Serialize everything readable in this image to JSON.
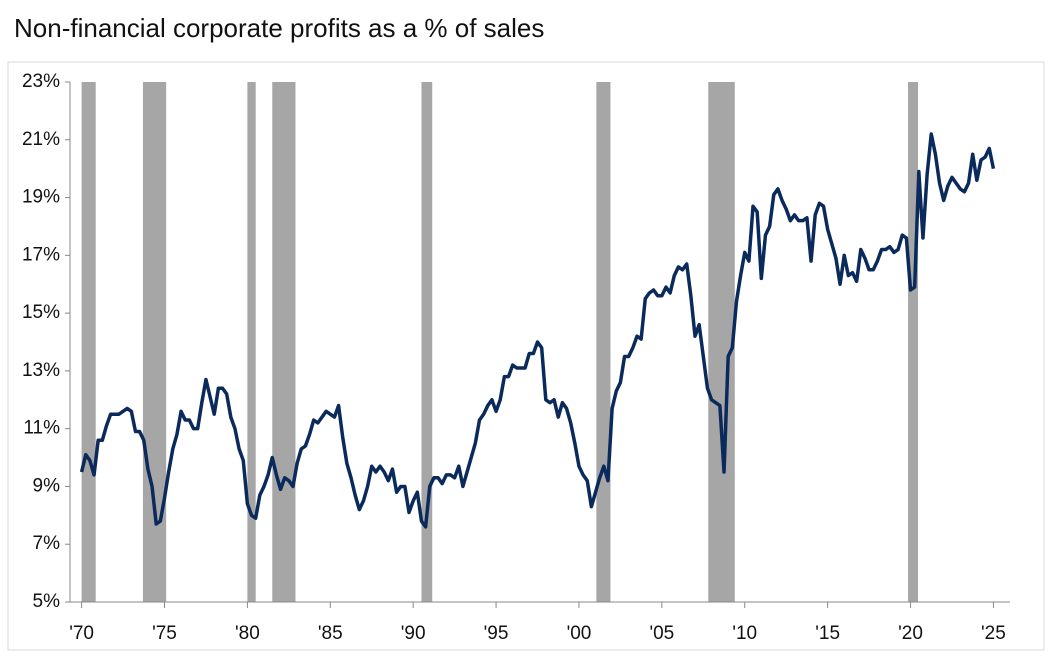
{
  "chart_data": {
    "type": "line",
    "title": "Non-financial corporate profits as a % of sales",
    "xlim": [
      1969.3,
      2026
    ],
    "ylim": [
      5,
      23
    ],
    "yticks": [
      {
        "value": 5,
        "label": "5%"
      },
      {
        "value": 7,
        "label": "7%"
      },
      {
        "value": 9,
        "label": "9%"
      },
      {
        "value": 11,
        "label": "11%"
      },
      {
        "value": 13,
        "label": "13%"
      },
      {
        "value": 15,
        "label": "15%"
      },
      {
        "value": 17,
        "label": "17%"
      },
      {
        "value": 19,
        "label": "19%"
      },
      {
        "value": 21,
        "label": "21%"
      },
      {
        "value": 23,
        "label": "23%"
      }
    ],
    "xticks": [
      {
        "value": 1970,
        "label": "'70"
      },
      {
        "value": 1975,
        "label": "'75"
      },
      {
        "value": 1980,
        "label": "'80"
      },
      {
        "value": 1985,
        "label": "'85"
      },
      {
        "value": 1990,
        "label": "'90"
      },
      {
        "value": 1995,
        "label": "'95"
      },
      {
        "value": 2000,
        "label": "'00"
      },
      {
        "value": 2005,
        "label": "'05"
      },
      {
        "value": 2010,
        "label": "'10"
      },
      {
        "value": 2015,
        "label": "'15"
      },
      {
        "value": 2020,
        "label": "'20"
      },
      {
        "value": 2025,
        "label": "'25"
      }
    ],
    "recessions": [
      [
        1970.0,
        1970.85
      ],
      [
        1973.7,
        1975.1
      ],
      [
        1980.0,
        1980.5
      ],
      [
        1981.5,
        1982.9
      ],
      [
        1990.5,
        1991.15
      ],
      [
        2001.05,
        2001.9
      ],
      [
        2007.8,
        2009.4
      ],
      [
        2019.85,
        2020.45
      ]
    ],
    "recession_color": "#a6a6a6",
    "x": [
      1970,
      1970.25,
      1970.5,
      1970.75,
      1971,
      1971.25,
      1971.5,
      1971.75,
      1972,
      1972.25,
      1972.5,
      1972.75,
      1973,
      1973.25,
      1973.5,
      1973.75,
      1974,
      1974.25,
      1974.5,
      1974.75,
      1975,
      1975.25,
      1975.5,
      1975.75,
      1976,
      1976.25,
      1976.5,
      1976.75,
      1977,
      1977.25,
      1977.5,
      1977.75,
      1978,
      1978.25,
      1978.5,
      1978.75,
      1979,
      1979.25,
      1979.5,
      1979.75,
      1980,
      1980.25,
      1980.5,
      1980.75,
      1981,
      1981.25,
      1981.5,
      1981.75,
      1982,
      1982.25,
      1982.5,
      1982.75,
      1983,
      1983.25,
      1983.5,
      1983.75,
      1984,
      1984.25,
      1984.5,
      1984.75,
      1985,
      1985.25,
      1985.5,
      1985.75,
      1986,
      1986.25,
      1986.5,
      1986.75,
      1987,
      1987.25,
      1987.5,
      1987.75,
      1988,
      1988.25,
      1988.5,
      1988.75,
      1989,
      1989.25,
      1989.5,
      1989.75,
      1990,
      1990.25,
      1990.5,
      1990.75,
      1991,
      1991.25,
      1991.5,
      1991.75,
      1992,
      1992.25,
      1992.5,
      1992.75,
      1993,
      1993.25,
      1993.5,
      1993.75,
      1994,
      1994.25,
      1994.5,
      1994.75,
      1995,
      1995.25,
      1995.5,
      1995.75,
      1996,
      1996.25,
      1996.5,
      1996.75,
      1997,
      1997.25,
      1997.5,
      1997.75,
      1998,
      1998.25,
      1998.5,
      1998.75,
      1999,
      1999.25,
      1999.5,
      1999.75,
      2000,
      2000.25,
      2000.5,
      2000.75,
      2001,
      2001.25,
      2001.5,
      2001.75,
      2002,
      2002.25,
      2002.5,
      2002.75,
      2003,
      2003.25,
      2003.5,
      2003.75,
      2004,
      2004.25,
      2004.5,
      2004.75,
      2005,
      2005.25,
      2005.5,
      2005.75,
      2006,
      2006.25,
      2006.5,
      2006.75,
      2007,
      2007.25,
      2007.5,
      2007.75,
      2008,
      2008.25,
      2008.5,
      2008.75,
      2009,
      2009.25,
      2009.5,
      2009.75,
      2010,
      2010.25,
      2010.5,
      2010.75,
      2011,
      2011.25,
      2011.5,
      2011.75,
      2012,
      2012.25,
      2012.5,
      2012.75,
      2013,
      2013.25,
      2013.5,
      2013.75,
      2014,
      2014.25,
      2014.5,
      2014.75,
      2015,
      2015.25,
      2015.5,
      2015.75,
      2016,
      2016.25,
      2016.5,
      2016.75,
      2017,
      2017.25,
      2017.5,
      2017.75,
      2018,
      2018.25,
      2018.5,
      2018.75,
      2019,
      2019.25,
      2019.5,
      2019.75,
      2020,
      2020.25,
      2020.5,
      2020.75,
      2021,
      2021.25,
      2021.5,
      2021.75,
      2022,
      2022.25,
      2022.5,
      2022.75,
      2023,
      2023.25,
      2023.5,
      2023.75,
      2024,
      2024.25,
      2024.5,
      2024.75,
      2025
    ],
    "series": [
      {
        "color": "#0b2a5c",
        "values": [
          9.5,
          10.1,
          9.9,
          9.4,
          10.6,
          10.6,
          11.1,
          11.5,
          11.5,
          11.5,
          11.6,
          11.7,
          11.6,
          10.9,
          10.9,
          10.6,
          9.6,
          9.0,
          7.7,
          7.8,
          8.6,
          9.5,
          10.3,
          10.8,
          11.6,
          11.3,
          11.3,
          11.0,
          11.0,
          11.9,
          12.7,
          12.1,
          11.5,
          12.4,
          12.4,
          12.2,
          11.4,
          11.0,
          10.3,
          9.9,
          8.4,
          8.0,
          7.9,
          8.7,
          9.0,
          9.4,
          10.0,
          9.4,
          8.9,
          9.3,
          9.2,
          9.0,
          9.8,
          10.3,
          10.4,
          10.8,
          11.3,
          11.2,
          11.4,
          11.6,
          11.5,
          11.4,
          11.8,
          10.7,
          9.8,
          9.3,
          8.7,
          8.2,
          8.5,
          9.0,
          9.7,
          9.5,
          9.7,
          9.5,
          9.2,
          9.6,
          8.8,
          9.0,
          9.0,
          8.1,
          8.5,
          8.8,
          7.8,
          7.6,
          9.0,
          9.3,
          9.3,
          9.1,
          9.4,
          9.4,
          9.3,
          9.7,
          9.0,
          9.5,
          10.0,
          10.5,
          11.3,
          11.5,
          11.8,
          12.0,
          11.6,
          12.0,
          12.8,
          12.8,
          13.2,
          13.1,
          13.1,
          13.1,
          13.6,
          13.6,
          14.0,
          13.8,
          12.0,
          11.9,
          12.0,
          11.4,
          11.9,
          11.7,
          11.2,
          10.5,
          9.7,
          9.4,
          9.2,
          8.3,
          8.8,
          9.3,
          9.7,
          9.2,
          11.7,
          12.3,
          12.6,
          13.5,
          13.5,
          13.8,
          14.2,
          14.1,
          15.5,
          15.7,
          15.8,
          15.6,
          15.6,
          15.9,
          15.7,
          16.3,
          16.6,
          16.5,
          16.7,
          15.6,
          14.2,
          14.6,
          13.5,
          12.4,
          12.0,
          11.9,
          11.8,
          9.5,
          13.5,
          13.8,
          15.4,
          16.3,
          17.1,
          16.8,
          18.7,
          18.5,
          16.2,
          17.7,
          18.0,
          19.1,
          19.3,
          18.9,
          18.6,
          18.2,
          18.4,
          18.2,
          18.2,
          18.3,
          16.8,
          18.4,
          18.8,
          18.7,
          17.9,
          17.4,
          16.9,
          16.0,
          17.0,
          16.3,
          16.4,
          16.1,
          17.2,
          16.9,
          16.5,
          16.5,
          16.8,
          17.2,
          17.2,
          17.3,
          17.1,
          17.2,
          17.7,
          17.6,
          15.8,
          15.9,
          19.9,
          17.6,
          19.8,
          21.2,
          20.5,
          19.5,
          18.9,
          19.4,
          19.7,
          19.5,
          19.3,
          19.2,
          19.5,
          20.5,
          19.6,
          20.3,
          20.4,
          20.7,
          20.0
        ]
      }
    ]
  }
}
